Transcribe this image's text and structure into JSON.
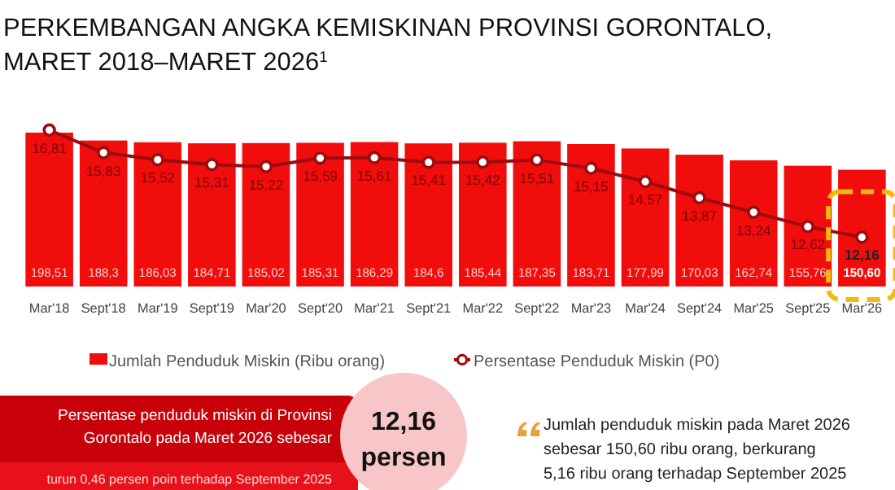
{
  "chart_data": {
    "type": "bar",
    "title": "PERKEMBANGAN ANGKA KEMISKINAN PROVINSI GORONTALO, MARET 2018–MARET 2026$^{1}$",
    "categories": [
      "Mar'18",
      "Sept'18",
      "Mar'19",
      "Sept'19",
      "Mar'20",
      "Sept'20",
      "Mar'21",
      "Sept'21",
      "Mar'22",
      "Sept'22",
      "Mar'23",
      "Mar'24",
      "Sept'24",
      "Mar'25",
      "Sept'25",
      "Mar'26"
    ],
    "series": [
      {
        "name": "Jumlah Penduduk Miskin (Ribu orang)",
        "color": "#f20d0d",
        "values": [
          198.51,
          188.3,
          186.03,
          184.71,
          185.02,
          185.31,
          186.29,
          184.6,
          185.44,
          187.35,
          183.71,
          177.99,
          170.03,
          162.74,
          155.76,
          150.6
        ],
        "value_labels": [
          "198,51",
          "188,3",
          "186,03",
          "184,71",
          "185,02",
          "185,31",
          "186,29",
          "184,6",
          "185,44",
          "187,35",
          "183,71",
          "177,99",
          "170,03",
          "162,74",
          "155,76",
          "150,60"
        ]
      },
      {
        "name": "Persentase Penduduk Miskin (P0)",
        "type": "line",
        "axis": "y2",
        "color": "#9e0b0f",
        "marker": "circle",
        "values": [
          16.81,
          15.83,
          15.52,
          15.31,
          15.22,
          15.59,
          15.61,
          15.41,
          15.42,
          15.51,
          15.15,
          14.57,
          13.87,
          13.24,
          12.62,
          12.16
        ],
        "value_labels": [
          "16,81",
          "15,83",
          "15,52",
          "15,31",
          "15,22",
          "15,59",
          "15,61",
          "15,41",
          "15,42",
          "15,51",
          "15,15",
          "14,57",
          "13,87",
          "13,24",
          "12,62",
          "12,16"
        ]
      }
    ],
    "tick_labels": "x",
    "legend": "bottom",
    "annotations": [
      "Persentase penduduk miskin di Provinsi Gorontalo pada Maret 2026 sebesar",
      "turun 0,46 persen poin terhadap September 2025",
      "12,16 persen",
      "Jumlah penduduk miskin pada Maret 2026 sebesar 150,60 ribu orang, berkurang 5,16 ribu orang terhadap September 2025"
    ]
  }
}
